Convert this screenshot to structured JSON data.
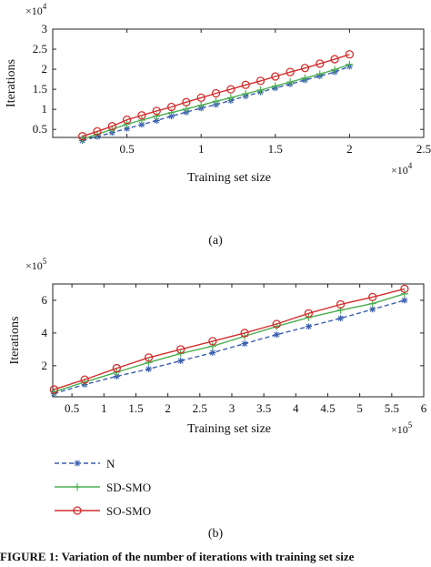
{
  "chart_data": [
    {
      "type": "line",
      "panel_label": "(a)",
      "xlabel": "Training set size",
      "ylabel": "Iterations",
      "x_multiplier": "×10",
      "x_exponent": "4",
      "y_multiplier": "×10",
      "y_exponent": "4",
      "xlim": [
        0,
        2.5
      ],
      "ylim": [
        0.3,
        3
      ],
      "xticks": [
        0.5,
        1,
        1.5,
        2,
        2.5
      ],
      "xtick_labels": [
        "0.5",
        "1",
        "1.5",
        "2",
        "2.5"
      ],
      "yticks": [
        0.5,
        1,
        1.5,
        2,
        2.5,
        3
      ],
      "ytick_labels": [
        "0.5",
        "1",
        "1.5",
        "2",
        "2.5",
        "3"
      ],
      "x": [
        0.2,
        0.3,
        0.4,
        0.5,
        0.6,
        0.7,
        0.8,
        0.9,
        1.0,
        1.1,
        1.2,
        1.3,
        1.4,
        1.5,
        1.6,
        1.7,
        1.8,
        1.9,
        2.0
      ],
      "series": [
        {
          "name": "N",
          "color": "#3a5fb0",
          "marker": "star",
          "dash": true,
          "values": [
            0.22,
            0.32,
            0.42,
            0.52,
            0.62,
            0.72,
            0.83,
            0.93,
            1.03,
            1.12,
            1.22,
            1.33,
            1.43,
            1.53,
            1.63,
            1.73,
            1.83,
            1.93,
            2.07
          ]
        },
        {
          "name": "SD-SMO",
          "color": "#4caf50",
          "marker": "plus",
          "dash": false,
          "values": [
            0.26,
            0.38,
            0.5,
            0.63,
            0.73,
            0.83,
            0.92,
            1.01,
            1.1,
            1.2,
            1.29,
            1.39,
            1.48,
            1.58,
            1.68,
            1.78,
            1.88,
            1.99,
            2.12
          ]
        },
        {
          "name": "SO-SMO",
          "color": "#d32f2f",
          "marker": "circle",
          "dash": false,
          "values": [
            0.33,
            0.45,
            0.58,
            0.74,
            0.85,
            0.96,
            1.06,
            1.18,
            1.29,
            1.4,
            1.5,
            1.61,
            1.71,
            1.82,
            1.93,
            2.03,
            2.14,
            2.25,
            2.37
          ]
        }
      ]
    },
    {
      "type": "line",
      "panel_label": "(b)",
      "xlabel": "Training set size",
      "ylabel": "Iterations",
      "x_multiplier": "×10",
      "x_exponent": "5",
      "y_multiplier": "×10",
      "y_exponent": "5",
      "xlim": [
        0.2,
        6
      ],
      "ylim": [
        0.1,
        7
      ],
      "xticks": [
        0.5,
        1,
        1.5,
        2,
        2.5,
        3,
        3.5,
        4,
        4.5,
        5,
        5.5,
        6
      ],
      "xtick_labels": [
        "0.5",
        "1",
        "1.5",
        "2",
        "2.5",
        "3",
        "3.5",
        "4",
        "4.5",
        "5",
        "5.5",
        "6"
      ],
      "yticks": [
        2,
        4,
        6
      ],
      "ytick_labels": [
        "2",
        "4",
        "6"
      ],
      "x": [
        0.22,
        0.7,
        1.2,
        1.7,
        2.2,
        2.7,
        3.2,
        3.7,
        4.2,
        4.7,
        5.2,
        5.7
      ],
      "series": [
        {
          "name": "N",
          "color": "#3a5fb0",
          "marker": "star",
          "dash": true,
          "values": [
            0.3,
            0.85,
            1.35,
            1.8,
            2.3,
            2.8,
            3.35,
            3.9,
            4.4,
            4.9,
            5.45,
            6.0
          ]
        },
        {
          "name": "SD-SMO",
          "color": "#4caf50",
          "marker": "plus",
          "dash": false,
          "values": [
            0.4,
            1.0,
            1.6,
            2.2,
            2.75,
            3.2,
            3.8,
            4.4,
            4.95,
            5.4,
            5.8,
            6.4
          ]
        },
        {
          "name": "SO-SMO",
          "color": "#d32f2f",
          "marker": "circle",
          "dash": false,
          "values": [
            0.55,
            1.15,
            1.85,
            2.5,
            3.0,
            3.5,
            4.0,
            4.55,
            5.2,
            5.75,
            6.2,
            6.7
          ]
        }
      ]
    }
  ],
  "legend": [
    {
      "label": "N",
      "color": "#3a5fb0",
      "marker": "star",
      "dash": true
    },
    {
      "label": "SD-SMO",
      "color": "#4caf50",
      "marker": "plus",
      "dash": false
    },
    {
      "label": "SO-SMO",
      "color": "#d32f2f",
      "marker": "circle",
      "dash": false
    }
  ],
  "caption": "FIGURE 1: Variation of the number of iterations with training set size"
}
